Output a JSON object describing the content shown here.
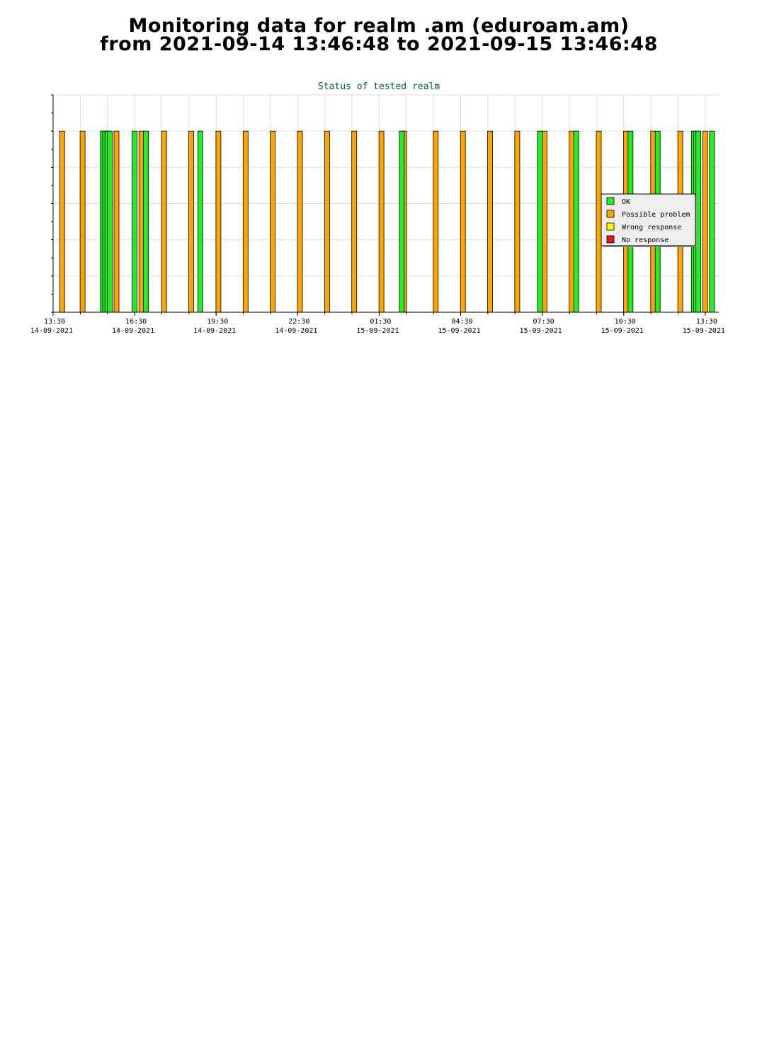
{
  "page": {
    "title_line1": "Monitoring data for realm .am  (eduroam.am)",
    "title_line2": "from 2021-09-14 13:46:48 to 2021-09-15 13:46:48"
  },
  "colors": {
    "ok": "#22ee22",
    "possible_problem": "#ffa500",
    "wrong_response": "#ffff00",
    "no_response": "#ee1111",
    "grid": "#dddddd",
    "title": "#00602a"
  },
  "chart_data": {
    "type": "bar",
    "title": "Status of tested realm",
    "xlabel": "",
    "ylabel": "",
    "x_axis": {
      "start": "2021-09-14 13:30",
      "end": "2021-09-15 14:00",
      "ticks": [
        {
          "time": "13:30",
          "date": "14-09-2021"
        },
        {
          "time": "16:30",
          "date": "14-09-2021"
        },
        {
          "time": "19:30",
          "date": "14-09-2021"
        },
        {
          "time": "22:30",
          "date": "14-09-2021"
        },
        {
          "time": "01:30",
          "date": "15-09-2021"
        },
        {
          "time": "04:30",
          "date": "15-09-2021"
        },
        {
          "time": "07:30",
          "date": "15-09-2021"
        },
        {
          "time": "10:30",
          "date": "15-09-2021"
        },
        {
          "time": "13:30",
          "date": "15-09-2021"
        }
      ]
    },
    "ylim": [
      0,
      6
    ],
    "grid": true,
    "legend_position": "right",
    "legend": [
      {
        "key": "ok",
        "label": "OK"
      },
      {
        "key": "possible_problem",
        "label": "Possible problem"
      },
      {
        "key": "wrong_response",
        "label": "Wrong response"
      },
      {
        "key": "no_response",
        "label": "No response"
      }
    ],
    "series": [
      {
        "key": "possible_problem",
        "value": 5,
        "times": [
          "2021-09-14 13:50",
          "2021-09-14 14:35",
          "2021-09-14 15:50",
          "2021-09-14 16:45",
          "2021-09-14 17:35",
          "2021-09-14 18:35",
          "2021-09-14 19:35",
          "2021-09-14 20:35",
          "2021-09-14 21:35",
          "2021-09-14 22:35",
          "2021-09-14 23:35",
          "2021-09-15 00:35",
          "2021-09-15 01:35",
          "2021-09-15 02:25",
          "2021-09-15 03:35",
          "2021-09-15 04:35",
          "2021-09-15 05:35",
          "2021-09-15 06:35",
          "2021-09-15 07:35",
          "2021-09-15 08:35",
          "2021-09-15 09:35",
          "2021-09-15 10:35",
          "2021-09-15 11:35",
          "2021-09-15 12:35",
          "2021-09-15 13:30"
        ]
      },
      {
        "key": "ok",
        "value": 5,
        "times": [
          "2021-09-14 15:20",
          "2021-09-14 15:25",
          "2021-09-14 15:30",
          "2021-09-14 15:35",
          "2021-09-14 16:30",
          "2021-09-14 16:55",
          "2021-09-14 18:55",
          "2021-09-15 02:20",
          "2021-09-15 07:25",
          "2021-09-15 08:45",
          "2021-09-15 10:45",
          "2021-09-15 11:45",
          "2021-09-15 13:05",
          "2021-09-15 13:10",
          "2021-09-15 13:15",
          "2021-09-15 13:45"
        ]
      }
    ]
  }
}
